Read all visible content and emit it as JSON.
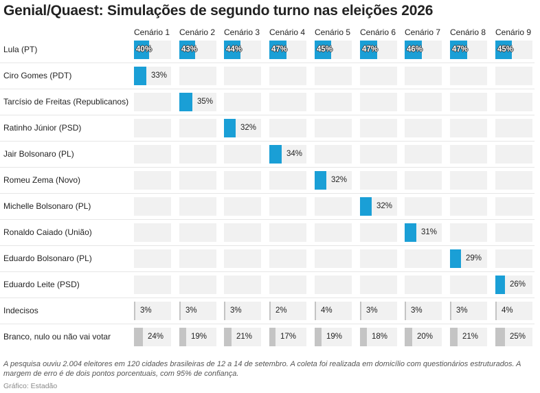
{
  "title": "Genial/Quaest: Simulações de segundo turno nas eleições 2026",
  "note": "A pesquisa ouviu 2.004 eleitores em 120 cidades brasileiras de 12 a 14 de setembro. A coleta foi realizada em domicílio com questionários estruturados. A margem de erro é de dois pontos porcentuais, com 95% de confiança.",
  "source": "Gráfico: Estadão",
  "colors": {
    "candidate": "#1a9fd6",
    "other": "#c4c4c4",
    "cell_bg": "#f1f1f1"
  },
  "chart_data": {
    "type": "table",
    "scale_max": 100,
    "columns": [
      "Cenário 1",
      "Cenário 2",
      "Cenário 3",
      "Cenário 4",
      "Cenário 5",
      "Cenário 6",
      "Cenário 7",
      "Cenário 8",
      "Cenário 9"
    ],
    "rows": [
      {
        "label": "Lula (PT)",
        "kind": "candidate",
        "values": [
          40,
          43,
          44,
          47,
          45,
          47,
          46,
          47,
          45
        ]
      },
      {
        "label": "Ciro Gomes (PDT)",
        "kind": "candidate",
        "values": [
          33,
          null,
          null,
          null,
          null,
          null,
          null,
          null,
          null
        ]
      },
      {
        "label": "Tarcísio de Freitas (Republicanos)",
        "kind": "candidate",
        "values": [
          null,
          35,
          null,
          null,
          null,
          null,
          null,
          null,
          null
        ]
      },
      {
        "label": "Ratinho Júnior (PSD)",
        "kind": "candidate",
        "values": [
          null,
          null,
          32,
          null,
          null,
          null,
          null,
          null,
          null
        ]
      },
      {
        "label": "Jair Bolsonaro (PL)",
        "kind": "candidate",
        "values": [
          null,
          null,
          null,
          34,
          null,
          null,
          null,
          null,
          null
        ]
      },
      {
        "label": "Romeu Zema (Novo)",
        "kind": "candidate",
        "values": [
          null,
          null,
          null,
          null,
          32,
          null,
          null,
          null,
          null
        ]
      },
      {
        "label": "Michelle Bolsonaro (PL)",
        "kind": "candidate",
        "values": [
          null,
          null,
          null,
          null,
          null,
          32,
          null,
          null,
          null
        ]
      },
      {
        "label": "Ronaldo Caiado (União)",
        "kind": "candidate",
        "values": [
          null,
          null,
          null,
          null,
          null,
          null,
          31,
          null,
          null
        ]
      },
      {
        "label": "Eduardo Bolsonaro (PL)",
        "kind": "candidate",
        "values": [
          null,
          null,
          null,
          null,
          null,
          null,
          null,
          29,
          null
        ]
      },
      {
        "label": "Eduardo Leite (PSD)",
        "kind": "candidate",
        "values": [
          null,
          null,
          null,
          null,
          null,
          null,
          null,
          null,
          26
        ]
      },
      {
        "label": "Indecisos",
        "kind": "other",
        "values": [
          3,
          3,
          3,
          2,
          4,
          3,
          3,
          3,
          4
        ]
      },
      {
        "label": "Branco, nulo ou não vai votar",
        "kind": "other",
        "values": [
          24,
          19,
          21,
          17,
          19,
          18,
          20,
          21,
          25
        ]
      }
    ]
  }
}
